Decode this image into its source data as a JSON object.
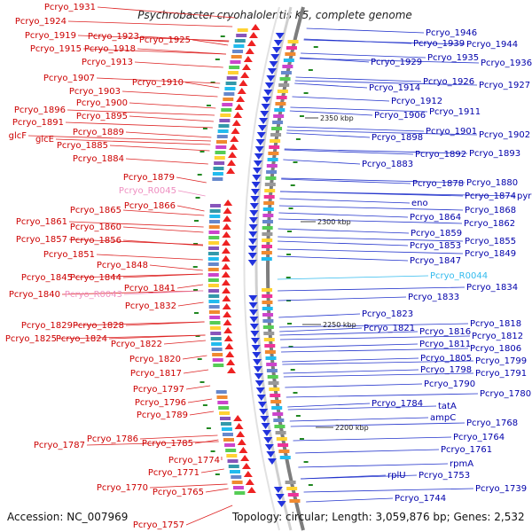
{
  "title": "Psychrobacter cryohalolentis K5, complete genome",
  "accession": "Accession: NC_007969",
  "topology": "Topology: circular; Length: 3,059,876 bp; Genes: 2,532",
  "scale_ticks": [
    "2350 kbp",
    "2300 kbp",
    "2250 kbp",
    "2200 kbp"
  ],
  "colors": {
    "left_label": "#cc0000",
    "left_rna": "#ee8ec0",
    "right_label": "#0000aa",
    "right_rna": "#33bbee",
    "backbone": "#999999"
  },
  "left_labels": [
    "Pcryo_1931",
    "Pcryo_1924",
    "Pcryo_1919",
    "Pcryo_1923",
    "Pcryo_1925",
    "Pcryo_1915",
    "Pcryo_1918",
    "Pcryo_1913",
    "Pcryo_1907",
    "Pcryo_1910",
    "Pcryo_1903",
    "Pcryo_1900",
    "Pcryo_1896",
    "Pcryo_1895",
    "Pcryo_1891",
    "glcF",
    "Pcryo_1889",
    "glcE",
    "Pcryo_1885",
    "Pcryo_1884",
    "Pcryo_1879",
    "Pcryo_R0045",
    "Pcryo_1865",
    "Pcryo_1866",
    "Pcryo_1861",
    "Pcryo_1860",
    "Pcryo_1857",
    "Pcryo_1856",
    "Pcryo_1851",
    "Pcryo_1848",
    "Pcryo_1845",
    "Pcryo_1844",
    "Pcryo_1840",
    "Pcryo_R0043",
    "Pcryo_1841",
    "Pcryo_1832",
    "Pcryo_1829",
    "Pcryo_1828",
    "Pcryo_1825",
    "Pcryo_1824",
    "Pcryo_1822",
    "Pcryo_1820",
    "Pcryo_1817",
    "Pcryo_1797",
    "Pcryo_1796",
    "Pcryo_1789",
    "Pcryo_1787",
    "Pcryo_1786",
    "Pcryo_1785",
    "Pcryo_1774",
    "Pcryo_1771",
    "Pcryo_1770",
    "Pcryo_1765",
    "Pcryo_1757"
  ],
  "right_labels": [
    "Pcryo_1946",
    "Pcryo_1939",
    "Pcryo_1944",
    "Pcryo_1929",
    "Pcryo_1935",
    "Pcryo_1936",
    "Pcryo_1926",
    "Pcryo_1927",
    "Pcryo_1914",
    "Pcryo_1912",
    "Pcryo_1911",
    "Pcryo_1906",
    "Pcryo_1901",
    "Pcryo_1902",
    "Pcryo_1898",
    "Pcryo_1892",
    "Pcryo_1893",
    "Pcryo_1883",
    "Pcryo_1880",
    "Pcryo_1878",
    "Pcryo_1874",
    "pyrG",
    "eno",
    "Pcryo_1868",
    "Pcryo_1864",
    "Pcryo_1862",
    "Pcryo_1859",
    "Pcryo_1855",
    "Pcryo_1853",
    "Pcryo_1849",
    "Pcryo_1847",
    "Pcryo_R0044",
    "Pcryo_1834",
    "Pcryo_1833",
    "Pcryo_1823",
    "Pcryo_1818",
    "Pcryo_1821",
    "Pcryo_1816",
    "Pcryo_1812",
    "Pcryo_1811",
    "Pcryo_1806",
    "Pcryo_1805",
    "Pcryo_1799",
    "Pcryo_1798",
    "Pcryo_1791",
    "Pcryo_1790",
    "Pcryo_1780",
    "Pcryo_1784",
    "tatA",
    "ampC",
    "Pcryo_1768",
    "Pcryo_1764",
    "Pcryo_1761",
    "rpmA",
    "rplU",
    "Pcryo_1753",
    "Pcryo_1739",
    "Pcryo_1744"
  ]
}
